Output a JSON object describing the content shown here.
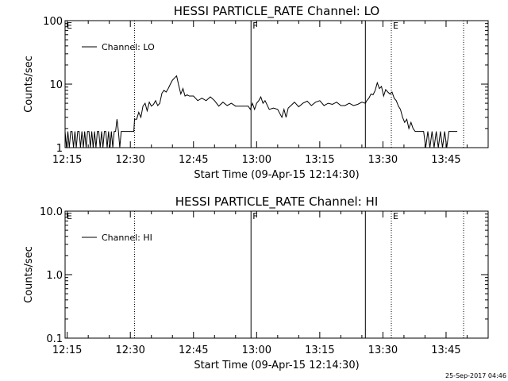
{
  "chart_data": [
    {
      "type": "line",
      "title": "HESSI PARTICLE_RATE Channel: LO",
      "xlabel": "Start Time (09-Apr-15 12:14:30)",
      "ylabel": "Counts/sec",
      "yscale": "log",
      "ylim": [
        1,
        100
      ],
      "xlim": [
        "12:14:30",
        "13:55:00"
      ],
      "x_tick_labels": [
        "12:15",
        "12:30",
        "12:45",
        "13:00",
        "13:15",
        "13:30",
        "13:45"
      ],
      "y_tick_labels": [
        "1",
        "10",
        "100"
      ],
      "legend": {
        "label": "Channel: LO",
        "placement": "top-left"
      },
      "grid": false,
      "markers": [
        {
          "time": "12:31:00",
          "style": "dotted",
          "label": ""
        },
        {
          "time": "12:58:40",
          "style": "solid",
          "label": "F"
        },
        {
          "time": "13:25:50",
          "style": "solid",
          "label": ""
        },
        {
          "time": "13:32:00",
          "style": "dotted",
          "label": "E"
        },
        {
          "time": "13:49:10",
          "style": "dotted",
          "label": ""
        }
      ],
      "corner_label": "E",
      "series": [
        {
          "name": "Channel: LO",
          "points": [
            [
              "12:14:30",
              1.8
            ],
            [
              "12:14:50",
              1.0
            ],
            [
              "12:15:10",
              1.8
            ],
            [
              "12:15:30",
              1.0
            ],
            [
              "12:15:50",
              1.8
            ],
            [
              "12:16:10",
              1.8
            ],
            [
              "12:16:30",
              1.0
            ],
            [
              "12:16:50",
              1.8
            ],
            [
              "12:17:10",
              1.0
            ],
            [
              "12:17:30",
              1.8
            ],
            [
              "12:17:50",
              1.8
            ],
            [
              "12:18:10",
              1.0
            ],
            [
              "12:18:30",
              1.8
            ],
            [
              "12:18:50",
              1.0
            ],
            [
              "12:19:10",
              1.8
            ],
            [
              "12:19:30",
              1.0
            ],
            [
              "12:19:50",
              1.8
            ],
            [
              "12:20:10",
              1.8
            ],
            [
              "12:20:30",
              1.0
            ],
            [
              "12:20:50",
              1.8
            ],
            [
              "12:21:10",
              1.0
            ],
            [
              "12:21:30",
              1.8
            ],
            [
              "12:21:50",
              1.0
            ],
            [
              "12:22:10",
              1.8
            ],
            [
              "12:22:30",
              1.8
            ],
            [
              "12:22:50",
              1.0
            ],
            [
              "12:23:10",
              1.8
            ],
            [
              "12:23:30",
              1.0
            ],
            [
              "12:23:50",
              1.8
            ],
            [
              "12:24:10",
              1.8
            ],
            [
              "12:24:30",
              1.0
            ],
            [
              "12:24:50",
              1.8
            ],
            [
              "12:25:10",
              1.0
            ],
            [
              "12:25:30",
              1.8
            ],
            [
              "12:25:50",
              1.0
            ],
            [
              "12:26:10",
              1.8
            ],
            [
              "12:26:30",
              1.8
            ],
            [
              "12:26:50",
              2.8
            ],
            [
              "12:27:10",
              1.8
            ],
            [
              "12:27:30",
              1.0
            ],
            [
              "12:27:50",
              1.8
            ],
            [
              "12:28:10",
              1.8
            ],
            [
              "12:28:30",
              1.8
            ],
            [
              "12:28:50",
              1.8
            ],
            [
              "12:29:10",
              1.8
            ],
            [
              "12:29:30",
              1.8
            ],
            [
              "12:29:50",
              1.8
            ],
            [
              "12:30:10",
              1.8
            ],
            [
              "12:30:30",
              1.8
            ],
            [
              "12:30:50",
              1.8
            ],
            [
              "12:31:00",
              2.8
            ],
            [
              "12:31:30",
              2.8
            ],
            [
              "12:32:00",
              3.6
            ],
            [
              "12:32:30",
              3.0
            ],
            [
              "12:33:00",
              4.5
            ],
            [
              "12:33:30",
              5.0
            ],
            [
              "12:34:00",
              3.8
            ],
            [
              "12:34:30",
              5.2
            ],
            [
              "12:35:00",
              4.5
            ],
            [
              "12:35:30",
              4.8
            ],
            [
              "12:36:00",
              5.5
            ],
            [
              "12:36:30",
              4.6
            ],
            [
              "12:37:00",
              5.0
            ],
            [
              "12:37:30",
              7.2
            ],
            [
              "12:38:00",
              8.0
            ],
            [
              "12:38:30",
              7.5
            ],
            [
              "12:39:00",
              8.5
            ],
            [
              "12:39:30",
              10.0
            ],
            [
              "12:40:00",
              11.5
            ],
            [
              "12:40:30",
              12.5
            ],
            [
              "12:41:00",
              13.5
            ],
            [
              "12:41:30",
              9.5
            ],
            [
              "12:42:00",
              7.0
            ],
            [
              "12:42:30",
              8.5
            ],
            [
              "12:43:00",
              6.5
            ],
            [
              "12:43:30",
              6.8
            ],
            [
              "12:44:00",
              6.5
            ],
            [
              "12:45:00",
              6.5
            ],
            [
              "12:46:00",
              5.5
            ],
            [
              "12:47:00",
              6.0
            ],
            [
              "12:48:00",
              5.5
            ],
            [
              "12:49:00",
              6.3
            ],
            [
              "12:50:00",
              5.5
            ],
            [
              "12:51:00",
              4.5
            ],
            [
              "12:52:00",
              5.2
            ],
            [
              "12:53:00",
              4.6
            ],
            [
              "12:54:00",
              5.0
            ],
            [
              "12:55:00",
              4.5
            ],
            [
              "12:56:00",
              4.5
            ],
            [
              "12:57:00",
              4.5
            ],
            [
              "12:58:00",
              4.5
            ],
            [
              "12:58:30",
              4.0
            ],
            [
              "12:59:00",
              5.0
            ],
            [
              "12:59:30",
              4.0
            ],
            [
              "13:00:00",
              5.0
            ],
            [
              "13:00:30",
              5.5
            ],
            [
              "13:01:00",
              6.3
            ],
            [
              "13:01:30",
              5.0
            ],
            [
              "13:02:00",
              5.5
            ],
            [
              "13:03:00",
              4.0
            ],
            [
              "13:04:00",
              4.2
            ],
            [
              "13:05:00",
              4.0
            ],
            [
              "13:06:00",
              3.0
            ],
            [
              "13:06:30",
              4.0
            ],
            [
              "13:07:00",
              3.0
            ],
            [
              "13:07:30",
              4.2
            ],
            [
              "13:08:00",
              4.5
            ],
            [
              "13:09:00",
              5.2
            ],
            [
              "13:10:00",
              4.4
            ],
            [
              "13:11:00",
              5.0
            ],
            [
              "13:12:00",
              5.4
            ],
            [
              "13:13:00",
              4.6
            ],
            [
              "13:14:00",
              5.2
            ],
            [
              "13:15:00",
              5.5
            ],
            [
              "13:16:00",
              4.6
            ],
            [
              "13:17:00",
              5.0
            ],
            [
              "13:18:00",
              4.8
            ],
            [
              "13:19:00",
              5.2
            ],
            [
              "13:20:00",
              4.6
            ],
            [
              "13:21:00",
              4.6
            ],
            [
              "13:22:00",
              5.0
            ],
            [
              "13:23:00",
              4.6
            ],
            [
              "13:24:00",
              4.8
            ],
            [
              "13:25:00",
              5.2
            ],
            [
              "13:25:50",
              5.0
            ],
            [
              "13:26:10",
              5.5
            ],
            [
              "13:26:40",
              6.0
            ],
            [
              "13:27:10",
              7.0
            ],
            [
              "13:27:40",
              6.8
            ],
            [
              "13:28:10",
              8.0
            ],
            [
              "13:28:40",
              10.5
            ],
            [
              "13:29:10",
              8.5
            ],
            [
              "13:29:40",
              9.2
            ],
            [
              "13:30:10",
              6.5
            ],
            [
              "13:30:40",
              8.2
            ],
            [
              "13:31:10",
              7.5
            ],
            [
              "13:31:40",
              7.0
            ],
            [
              "13:32:10",
              7.5
            ],
            [
              "13:32:40",
              6.0
            ],
            [
              "13:33:10",
              5.5
            ],
            [
              "13:33:40",
              4.5
            ],
            [
              "13:34:10",
              4.0
            ],
            [
              "13:34:40",
              3.0
            ],
            [
              "13:35:10",
              2.5
            ],
            [
              "13:35:40",
              2.8
            ],
            [
              "13:36:10",
              2.0
            ],
            [
              "13:36:40",
              2.5
            ],
            [
              "13:37:10",
              2.0
            ],
            [
              "13:37:40",
              1.8
            ],
            [
              "13:38:40",
              1.8
            ],
            [
              "13:39:40",
              1.8
            ],
            [
              "13:40:10",
              1.0
            ],
            [
              "13:40:40",
              1.8
            ],
            [
              "13:41:10",
              1.0
            ],
            [
              "13:41:40",
              1.8
            ],
            [
              "13:42:10",
              1.0
            ],
            [
              "13:42:40",
              1.8
            ],
            [
              "13:43:10",
              1.0
            ],
            [
              "13:43:40",
              1.8
            ],
            [
              "13:44:10",
              1.0
            ],
            [
              "13:44:40",
              1.8
            ],
            [
              "13:45:10",
              1.0
            ],
            [
              "13:45:40",
              1.8
            ],
            [
              "13:46:10",
              1.8
            ],
            [
              "13:46:40",
              1.8
            ],
            [
              "13:47:10",
              1.8
            ],
            [
              "13:47:40",
              1.8
            ]
          ]
        }
      ]
    },
    {
      "type": "line",
      "title": "HESSI PARTICLE_RATE Channel: HI",
      "xlabel": "Start Time (09-Apr-15 12:14:30)",
      "ylabel": "Counts/sec",
      "yscale": "log",
      "ylim": [
        0.1,
        10.0
      ],
      "xlim": [
        "12:14:30",
        "13:55:00"
      ],
      "x_tick_labels": [
        "12:15",
        "12:30",
        "12:45",
        "13:00",
        "13:15",
        "13:30",
        "13:45"
      ],
      "y_tick_labels": [
        "0.1",
        "1.0",
        "10.0"
      ],
      "legend": {
        "label": "Channel: HI",
        "placement": "top-left"
      },
      "grid": false,
      "markers": [
        {
          "time": "12:31:00",
          "style": "dotted",
          "label": ""
        },
        {
          "time": "12:58:40",
          "style": "solid",
          "label": "F"
        },
        {
          "time": "13:25:50",
          "style": "solid",
          "label": ""
        },
        {
          "time": "13:32:00",
          "style": "dotted",
          "label": "E"
        },
        {
          "time": "13:49:10",
          "style": "dotted",
          "label": ""
        }
      ],
      "corner_label": "E",
      "series": [
        {
          "name": "Channel: HI",
          "points": []
        }
      ]
    }
  ],
  "footer": {
    "timestamp": "25-Sep-2017 04:46"
  }
}
